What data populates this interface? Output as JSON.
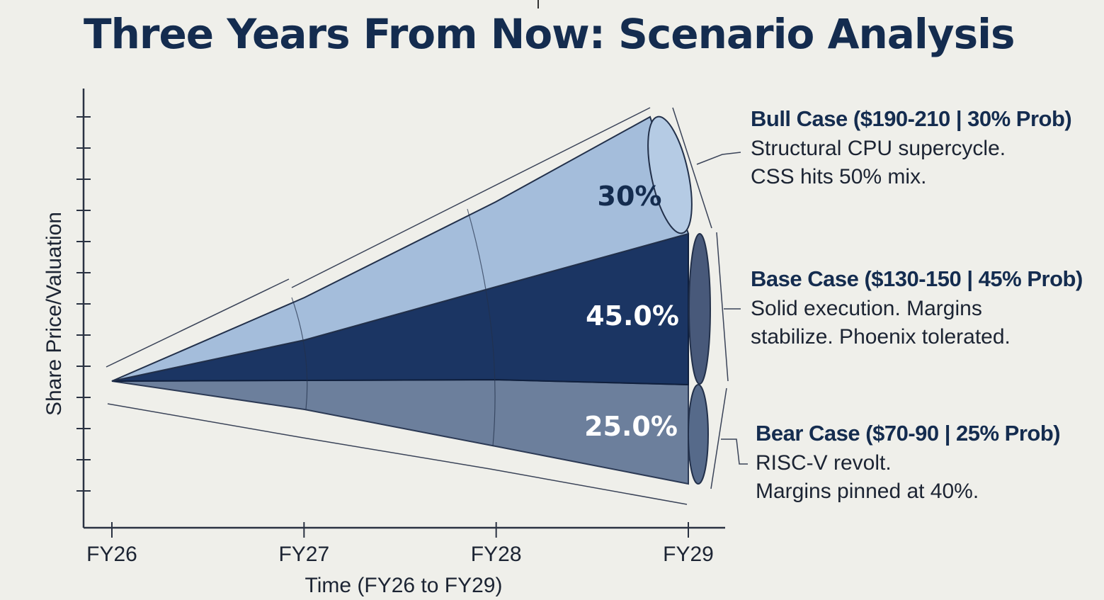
{
  "title": "Three Years From Now: Scenario Analysis",
  "chart_data": {
    "type": "area",
    "title": "Three Years From Now: Scenario Analysis",
    "xlabel": "Time (FY26 to FY29)",
    "ylabel": "Share Price/Valuation",
    "categories": [
      "FY26",
      "FY27",
      "FY28",
      "FY29"
    ],
    "series": [
      {
        "name": "Bull Case",
        "probability_label": "30%",
        "probability": 30,
        "color": "#a4bddb"
      },
      {
        "name": "Base Case",
        "probability_label": "45.0%",
        "probability": 45,
        "color": "#1b3563"
      },
      {
        "name": "Bear Case",
        "probability_label": "25.0%",
        "probability": 25,
        "color": "#6c7f9c"
      }
    ]
  },
  "scenarios": [
    {
      "id": "bull",
      "heading": "Bull Case ($190-210 | 30% Prob)",
      "lines": [
        "Structural CPU supercycle.",
        "CSS hits 50% mix."
      ]
    },
    {
      "id": "base",
      "heading": "Base Case ($130-150 | 45% Prob)",
      "lines": [
        "Solid execution. Margins",
        "stabilize. Phoenix tolerated."
      ]
    },
    {
      "id": "bear",
      "heading": "Bear Case ($70-90 | 25% Prob)",
      "lines": [
        "RISC-V revolt.",
        "Margins pinned at 40%."
      ]
    }
  ],
  "colors": {
    "title": "#142c4f",
    "background": "#efefea",
    "axis": "#2a3242",
    "bull": "#a4bddb",
    "base": "#1b3563",
    "bear": "#6c7f9c"
  }
}
